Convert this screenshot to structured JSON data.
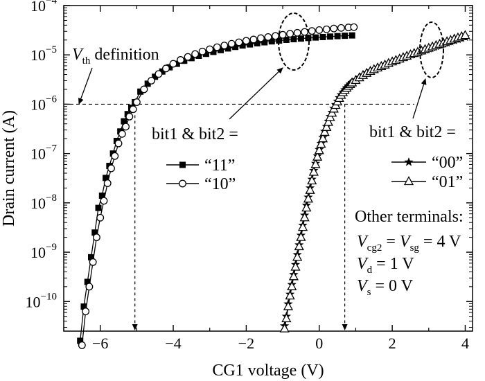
{
  "chart_data": {
    "type": "line",
    "xlabel": "CG1 voltage (V)",
    "ylabel": "Drain current (A)",
    "xlim": [
      -7,
      4.2
    ],
    "ylim_log10": [
      -10.6,
      -4
    ],
    "yscale": "log",
    "x_ticks": [
      -6,
      -4,
      -2,
      0,
      2,
      4
    ],
    "x_tick_labels": [
      "−6",
      "−4",
      "−2",
      "0",
      "2",
      "4"
    ],
    "y_ticks_exp": [
      -10,
      -9,
      -8,
      -7,
      -6,
      -5,
      -4
    ],
    "y_tick_base": "10",
    "grid": false,
    "threshold_current": 1e-06,
    "threshold_voltages": [
      -5.05,
      0.7
    ],
    "annotations": {
      "vth_var": "V",
      "vth_sub": "th",
      "vth_text": " definition",
      "bits_label_left": "bit1 & bit2 =",
      "bits_label_right": "bit1 & bit2 =",
      "other_title": "Other terminals:",
      "cond1": {
        "v1": "V",
        "s1": "cg2",
        "mid": " = ",
        "v2": "V",
        "s2": "sg",
        "tail": " = 4 V"
      },
      "cond2": {
        "v": "V",
        "s": "d",
        "tail": " = 1 V"
      },
      "cond3": {
        "v": "V",
        "s": "s",
        "tail": " = 0 V"
      }
    },
    "series": [
      {
        "name": "“11”",
        "marker": "filled-square",
        "x": [
          -6.55,
          -6.45,
          -6.35,
          -6.25,
          -6.15,
          -6.05,
          -5.95,
          -5.85,
          -5.75,
          -5.65,
          -5.55,
          -5.45,
          -5.35,
          -5.25,
          -5.15,
          -5.05,
          -4.9,
          -4.7,
          -4.5,
          -4.3,
          -4.1,
          -3.9,
          -3.7,
          -3.5,
          -3.3,
          -3.1,
          -2.9,
          -2.7,
          -2.5,
          -2.3,
          -2.1,
          -1.9,
          -1.7,
          -1.5,
          -1.3,
          -1.1,
          -0.9,
          -0.7,
          -0.5,
          -0.3,
          -0.1,
          0.1,
          0.3,
          0.5,
          0.7,
          0.9
        ],
        "y": [
          1.6e-11,
          7.9e-11,
          2.5e-10,
          7.9e-10,
          2.5e-09,
          7.9e-09,
          1.4e-08,
          3.2e-08,
          5.6e-08,
          1e-07,
          1.8e-07,
          2.8e-07,
          4.5e-07,
          6.3e-07,
          8.5e-07,
          1.1e-06,
          1.8e-06,
          2.6e-06,
          3.6e-06,
          4.6e-06,
          5.6e-06,
          6.6e-06,
          7.6e-06,
          8.6e-06,
          9.6e-06,
          1.05e-05,
          1.15e-05,
          1.25e-05,
          1.35e-05,
          1.45e-05,
          1.55e-05,
          1.63e-05,
          1.72e-05,
          1.8e-05,
          1.88e-05,
          1.95e-05,
          2.02e-05,
          2.08e-05,
          2.14e-05,
          2.2e-05,
          2.25e-05,
          2.3e-05,
          2.35e-05,
          2.4e-05,
          2.44e-05,
          2.48e-05
        ]
      },
      {
        "name": "“10”",
        "marker": "open-circle",
        "x": [
          -6.5,
          -6.4,
          -6.3,
          -6.2,
          -6.1,
          -6.0,
          -5.9,
          -5.8,
          -5.7,
          -5.6,
          -5.5,
          -5.4,
          -5.3,
          -5.2,
          -5.1,
          -5.0,
          -4.8,
          -4.6,
          -4.4,
          -4.2,
          -4.0,
          -3.8,
          -3.6,
          -3.4,
          -3.2,
          -3.0,
          -2.8,
          -2.6,
          -2.4,
          -2.2,
          -2.0,
          -1.8,
          -1.6,
          -1.4,
          -1.2,
          -1.0,
          -0.8,
          -0.6,
          -0.4,
          -0.2,
          0.0,
          0.2,
          0.4,
          0.6,
          0.8,
          0.95
        ],
        "y": [
          1.3e-11,
          6.3e-11,
          2e-10,
          6.3e-10,
          2e-09,
          5e-09,
          1.1e-08,
          2.5e-08,
          5e-08,
          8.9e-08,
          1.6e-07,
          2.5e-07,
          3.5e-07,
          5.6e-07,
          7.9e-07,
          1.1e-06,
          2e-06,
          3e-06,
          4.1e-06,
          5.3e-06,
          6.6e-06,
          7.9e-06,
          9.1e-06,
          1.04e-05,
          1.17e-05,
          1.3e-05,
          1.43e-05,
          1.55e-05,
          1.68e-05,
          1.8e-05,
          1.93e-05,
          2.05e-05,
          2.18e-05,
          2.3e-05,
          2.42e-05,
          2.55e-05,
          2.68e-05,
          2.8e-05,
          2.92e-05,
          3.05e-05,
          3.18e-05,
          3.3e-05,
          3.42e-05,
          3.52e-05,
          3.6e-05,
          3.65e-05
        ]
      },
      {
        "name": "“00”",
        "marker": "filled-star",
        "x": [
          -0.95,
          -0.9,
          -0.85,
          -0.8,
          -0.75,
          -0.7,
          -0.65,
          -0.6,
          -0.55,
          -0.5,
          -0.45,
          -0.4,
          -0.35,
          -0.3,
          -0.25,
          -0.2,
          -0.15,
          -0.1,
          -0.05,
          0.0,
          0.05,
          0.1,
          0.15,
          0.2,
          0.25,
          0.3,
          0.35,
          0.4,
          0.45,
          0.5,
          0.55,
          0.6,
          0.65,
          0.7,
          0.75,
          0.8,
          0.85,
          0.9,
          1.0,
          1.1,
          1.2,
          1.3,
          1.4,
          1.5,
          1.6,
          1.7,
          1.8,
          1.9,
          2.0,
          2.1,
          2.2,
          2.3,
          2.4,
          2.5,
          2.6,
          2.7,
          2.8,
          2.9,
          3.0,
          3.1,
          3.2,
          3.3,
          3.4,
          3.5,
          3.6,
          3.7,
          3.8,
          3.9,
          4.0
        ],
        "y": [
          3.2e-11,
          5e-11,
          8.9e-11,
          1.4e-10,
          2.2e-10,
          3.5e-10,
          5.6e-10,
          8.9e-10,
          1.4e-09,
          2.2e-09,
          3.5e-09,
          5.6e-09,
          8.9e-09,
          1.3e-08,
          2e-08,
          3e-08,
          4.5e-08,
          6.3e-08,
          8.9e-08,
          1.2e-07,
          1.6e-07,
          2.1e-07,
          2.8e-07,
          3.5e-07,
          4.5e-07,
          5.6e-07,
          6.8e-07,
          8.2e-07,
          9.8e-07,
          1.15e-06,
          1.35e-06,
          1.55e-06,
          1.75e-06,
          1.95e-06,
          2.15e-06,
          2.35e-06,
          2.55e-06,
          2.75e-06,
          3.1e-06,
          3.5e-06,
          3.9e-06,
          4.3e-06,
          4.7e-06,
          5.1e-06,
          5.5e-06,
          5.9e-06,
          6.3e-06,
          6.8e-06,
          7.3e-06,
          7.8e-06,
          8.3e-06,
          8.9e-06,
          9.5e-06,
          1.01e-05,
          1.07e-05,
          1.13e-05,
          1.2e-05,
          1.27e-05,
          1.34e-05,
          1.42e-05,
          1.5e-05,
          1.58e-05,
          1.67e-05,
          1.76e-05,
          1.86e-05,
          1.96e-05,
          2.07e-05,
          2.18e-05,
          2.3e-05
        ]
      },
      {
        "name": "“01”",
        "marker": "open-triangle",
        "x": [
          -0.95,
          -0.9,
          -0.85,
          -0.8,
          -0.75,
          -0.7,
          -0.65,
          -0.6,
          -0.55,
          -0.5,
          -0.45,
          -0.4,
          -0.35,
          -0.3,
          -0.25,
          -0.2,
          -0.15,
          -0.1,
          -0.05,
          0.0,
          0.05,
          0.1,
          0.15,
          0.2,
          0.25,
          0.3,
          0.35,
          0.4,
          0.45,
          0.5,
          0.55,
          0.6,
          0.65,
          0.7,
          0.75,
          0.8,
          0.85,
          0.9,
          1.0,
          1.1,
          1.2,
          1.3,
          1.4,
          1.5,
          1.6,
          1.7,
          1.8,
          1.9,
          2.0,
          2.1,
          2.2,
          2.3,
          2.4,
          2.5,
          2.6,
          2.7,
          2.8,
          2.9,
          3.0,
          3.1,
          3.2,
          3.3,
          3.4,
          3.5,
          3.6,
          3.7,
          3.8,
          3.9,
          4.0
        ],
        "y": [
          2.8e-11,
          4.5e-11,
          7.9e-11,
          1.3e-10,
          2e-10,
          3.2e-10,
          5e-10,
          7.9e-10,
          1.3e-09,
          2e-09,
          3.2e-09,
          5e-09,
          7.9e-09,
          1.2e-08,
          1.8e-08,
          2.8e-08,
          4.2e-08,
          6e-08,
          8.5e-08,
          1.15e-07,
          1.55e-07,
          2e-07,
          2.7e-07,
          3.4e-07,
          4.3e-07,
          5.4e-07,
          6.6e-07,
          8e-07,
          9.5e-07,
          1.12e-06,
          1.32e-06,
          1.52e-06,
          1.72e-06,
          1.92e-06,
          2.12e-06,
          2.32e-06,
          2.52e-06,
          2.72e-06,
          3.05e-06,
          3.45e-06,
          3.85e-06,
          4.25e-06,
          4.65e-06,
          5.05e-06,
          5.45e-06,
          5.85e-06,
          6.25e-06,
          6.75e-06,
          7.25e-06,
          7.75e-06,
          8.25e-06,
          8.85e-06,
          9.45e-06,
          1.01e-05,
          1.07e-05,
          1.14e-05,
          1.21e-05,
          1.29e-05,
          1.37e-05,
          1.46e-05,
          1.55e-05,
          1.65e-05,
          1.75e-05,
          1.86e-05,
          1.98e-05,
          2.1e-05,
          2.22e-05,
          2.35e-05,
          2.48e-05
        ]
      }
    ]
  }
}
